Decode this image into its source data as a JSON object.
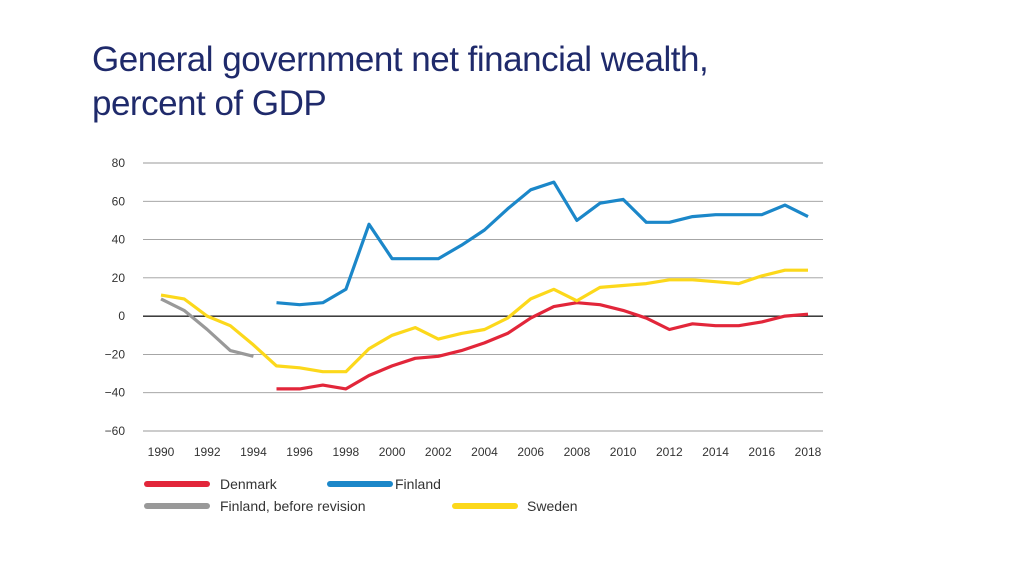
{
  "slide": {
    "title_line1": "General government net financial wealth,",
    "title_line2": "percent of GDP"
  },
  "chart_data": {
    "type": "line",
    "title": "General government net financial wealth, percent of GDP",
    "xlabel": "",
    "ylabel": "",
    "x": [
      1990,
      1991,
      1992,
      1993,
      1994,
      1995,
      1996,
      1997,
      1998,
      1999,
      2000,
      2001,
      2002,
      2003,
      2004,
      2005,
      2006,
      2007,
      2008,
      2009,
      2010,
      2011,
      2012,
      2013,
      2014,
      2015,
      2016,
      2017,
      2018
    ],
    "xlim": [
      1990,
      2018
    ],
    "ylim": [
      -60,
      80
    ],
    "x_ticks": [
      1990,
      1992,
      1994,
      1996,
      1998,
      2000,
      2002,
      2004,
      2006,
      2008,
      2010,
      2012,
      2014,
      2016,
      2018
    ],
    "y_ticks": [
      80,
      60,
      40,
      20,
      0,
      -20,
      -40,
      -60
    ],
    "y_tick_labels": [
      "80",
      "60",
      "40",
      "20",
      "0",
      "−20",
      "−40",
      "−60"
    ],
    "grid": true,
    "legend_position": "bottom",
    "series": [
      {
        "name": "Denmark",
        "color": "#e2263a",
        "values": [
          null,
          null,
          null,
          null,
          null,
          -38,
          -38,
          -36,
          -38,
          -31,
          -26,
          -22,
          -21,
          -18,
          -14,
          -9,
          -1,
          5,
          7,
          6,
          3,
          -1,
          -7,
          -4,
          -5,
          -5,
          -3,
          0,
          1
        ]
      },
      {
        "name": "Finland",
        "color": "#1b87c9",
        "values": [
          null,
          null,
          null,
          null,
          null,
          7,
          6,
          7,
          14,
          48,
          30,
          30,
          30,
          37,
          45,
          56,
          66,
          70,
          50,
          59,
          61,
          49,
          49,
          52,
          53,
          53,
          53,
          58,
          52
        ]
      },
      {
        "name": "Finland, before revision",
        "color": "#999999",
        "values": [
          9,
          3,
          -7,
          -18,
          -21,
          null,
          null,
          null,
          null,
          null,
          null,
          null,
          null,
          null,
          null,
          null,
          null,
          null,
          null,
          null,
          null,
          null,
          null,
          null,
          null,
          null,
          null,
          null,
          null
        ]
      },
      {
        "name": "Sweden",
        "color": "#fcd81b",
        "values": [
          11,
          9,
          0,
          -5,
          -15,
          -26,
          -27,
          -29,
          -29,
          -17,
          -10,
          -6,
          -12,
          -9,
          -7,
          -1,
          9,
          14,
          8,
          15,
          16,
          17,
          19,
          19,
          18,
          17,
          21,
          24,
          24
        ]
      }
    ]
  }
}
